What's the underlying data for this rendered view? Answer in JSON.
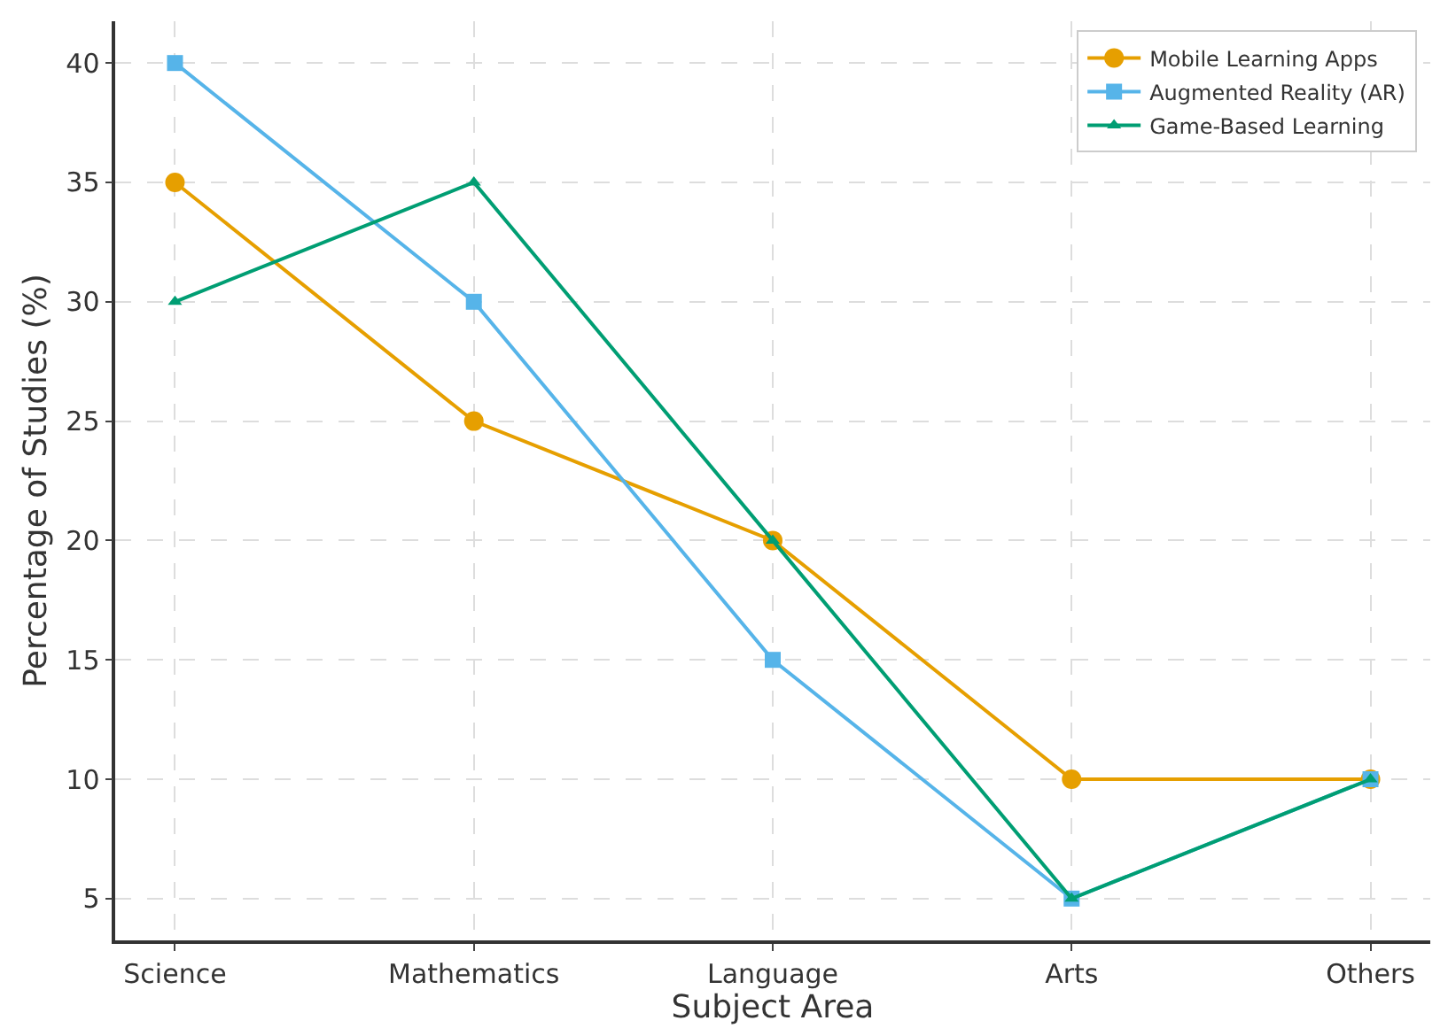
{
  "chart_data": {
    "type": "line",
    "xlabel": "Subject Area",
    "ylabel": "Percentage of Studies (%)",
    "categories": [
      "Science",
      "Mathematics",
      "Language",
      "Arts",
      "Others"
    ],
    "series": [
      {
        "name": "Mobile Learning Apps",
        "color": "#e69f00",
        "marker": "circle",
        "values": [
          35,
          25,
          20,
          10,
          10
        ]
      },
      {
        "name": "Augmented Reality (AR)",
        "color": "#56b4e9",
        "marker": "square",
        "values": [
          40,
          30,
          15,
          5,
          10
        ]
      },
      {
        "name": "Game-Based Learning",
        "color": "#009e73",
        "marker": "triangle",
        "values": [
          30,
          35,
          20,
          5,
          10
        ]
      }
    ],
    "ylim": [
      3.25,
      41.75
    ],
    "yticks": [
      5,
      10,
      15,
      20,
      25,
      30,
      35,
      40
    ],
    "grid": true,
    "legend": "top right",
    "line_style": "solid"
  }
}
